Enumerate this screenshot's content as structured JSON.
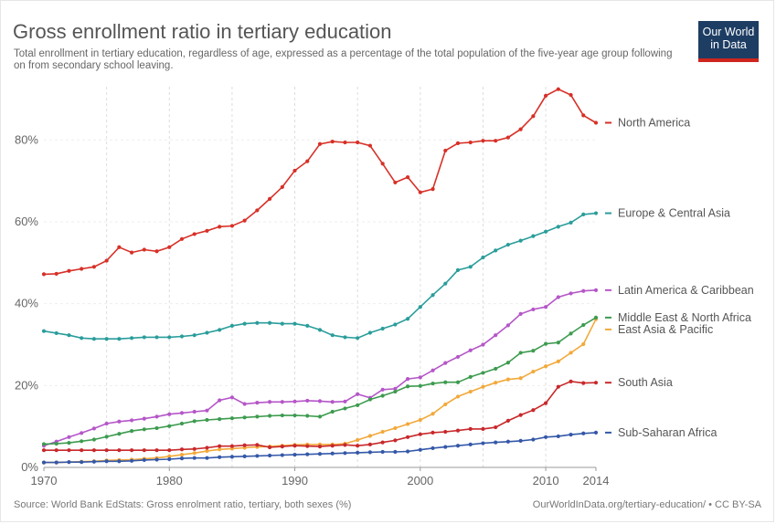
{
  "header": {
    "title": "Gross enrollment ratio in tertiary education",
    "subtitle": "Total enrollment in tertiary education, regardless of age, expressed as a percentage of the total population of the five-year age group following on from secondary school leaving."
  },
  "logo": {
    "line1": "Our World",
    "line2": "in Data",
    "bg": "#1d3d63",
    "accent": "#ce261e"
  },
  "footer": {
    "source": "Source: World Bank EdStats: Gross enrolment ratio, tertiary, both sexes (%)",
    "credit": "OurWorldInData.org/tertiary-education/ • CC BY-SA"
  },
  "chart_data": {
    "type": "line",
    "title": "Gross enrollment ratio in tertiary education",
    "xlabel": "",
    "ylabel": "",
    "xlim": [
      1970,
      2014
    ],
    "ylim": [
      0,
      93
    ],
    "grid": "vertical dashed",
    "legend": "right-edge labels",
    "x_ticks": [
      1970,
      1980,
      1990,
      2000,
      2010,
      2014
    ],
    "y_ticks": [
      0,
      20,
      40,
      60,
      80
    ],
    "y_tick_labels": [
      "0%",
      "20%",
      "40%",
      "60%",
      "80%"
    ],
    "series": [
      {
        "name": "North America",
        "color": "#d73027",
        "x": [
          1970,
          1971,
          1972,
          1973,
          1974,
          1975,
          1976,
          1977,
          1978,
          1979,
          1980,
          1981,
          1982,
          1983,
          1984,
          1985,
          1986,
          1987,
          1988,
          1989,
          1990,
          1991,
          1992,
          1993,
          1994,
          1995,
          1996,
          1997,
          1998,
          1999,
          2000,
          2001,
          2002,
          2003,
          2004,
          2005,
          2006,
          2007,
          2008,
          2009,
          2010,
          2011,
          2012,
          2013,
          2014
        ],
        "values": [
          47.2,
          47.3,
          48.0,
          48.5,
          49.0,
          50.5,
          53.8,
          52.5,
          53.2,
          52.8,
          53.8,
          55.8,
          57.0,
          57.8,
          58.8,
          59.0,
          60.3,
          62.8,
          65.6,
          68.5,
          72.5,
          74.8,
          79.0,
          79.6,
          79.4,
          79.4,
          78.6,
          74.2,
          69.6,
          70.9,
          67.2,
          68.0,
          77.4,
          79.2,
          79.4,
          79.8,
          79.8,
          80.6,
          82.6,
          85.8,
          90.8,
          92.4,
          91.0,
          86.0,
          84.2
        ]
      },
      {
        "name": "Europe & Central Asia",
        "color": "#2a9d9b",
        "x": [
          1970,
          1971,
          1972,
          1973,
          1974,
          1975,
          1976,
          1977,
          1978,
          1979,
          1980,
          1981,
          1982,
          1983,
          1984,
          1985,
          1986,
          1987,
          1988,
          1989,
          1990,
          1991,
          1992,
          1993,
          1994,
          1995,
          1996,
          1997,
          1998,
          1999,
          2000,
          2001,
          2002,
          2003,
          2004,
          2005,
          2006,
          2007,
          2008,
          2009,
          2010,
          2011,
          2012,
          2013,
          2014
        ],
        "values": [
          33.3,
          32.8,
          32.3,
          31.6,
          31.4,
          31.4,
          31.4,
          31.6,
          31.8,
          31.8,
          31.8,
          32.0,
          32.3,
          32.9,
          33.6,
          34.6,
          35.1,
          35.3,
          35.3,
          35.1,
          35.1,
          34.6,
          33.6,
          32.3,
          31.8,
          31.6,
          32.9,
          33.9,
          34.9,
          36.3,
          39.2,
          42.1,
          44.9,
          48.2,
          49.0,
          51.3,
          53.0,
          54.4,
          55.4,
          56.5,
          57.6,
          58.8,
          59.8,
          61.8,
          62.1
        ]
      },
      {
        "name": "Latin America & Caribbean",
        "color": "#b556c8",
        "x": [
          1970,
          1971,
          1972,
          1973,
          1974,
          1975,
          1976,
          1977,
          1978,
          1979,
          1980,
          1981,
          1982,
          1983,
          1984,
          1985,
          1986,
          1987,
          1988,
          1989,
          1990,
          1991,
          1992,
          1993,
          1994,
          1995,
          1996,
          1997,
          1998,
          1999,
          2000,
          2001,
          2002,
          2003,
          2004,
          2005,
          2006,
          2007,
          2008,
          2009,
          2010,
          2011,
          2012,
          2013,
          2014
        ],
        "values": [
          5.3,
          6.3,
          7.4,
          8.4,
          9.5,
          10.7,
          11.2,
          11.5,
          11.9,
          12.4,
          13.0,
          13.3,
          13.6,
          13.9,
          16.4,
          17.1,
          15.5,
          15.8,
          16.0,
          16.0,
          16.1,
          16.3,
          16.2,
          16.0,
          16.1,
          17.9,
          17.0,
          19.0,
          19.2,
          21.6,
          22.0,
          23.7,
          25.5,
          27.0,
          28.6,
          30.0,
          32.3,
          34.7,
          37.5,
          38.6,
          39.2,
          41.6,
          42.5,
          43.1,
          43.3
        ]
      },
      {
        "name": "East Asia & Pacific",
        "color": "#f2a93b",
        "x": [
          1970,
          1971,
          1972,
          1973,
          1974,
          1975,
          1976,
          1977,
          1978,
          1979,
          1980,
          1981,
          1982,
          1983,
          1984,
          1985,
          1986,
          1987,
          1988,
          1989,
          1990,
          1991,
          1992,
          1993,
          1994,
          1995,
          1996,
          1997,
          1998,
          1999,
          2000,
          2001,
          2002,
          2003,
          2004,
          2005,
          2006,
          2007,
          2008,
          2009,
          2010,
          2011,
          2012,
          2013,
          2014
        ],
        "values": [
          1.2,
          1.2,
          1.3,
          1.4,
          1.5,
          1.7,
          1.8,
          1.9,
          2.1,
          2.3,
          2.7,
          3.1,
          3.5,
          4.0,
          4.4,
          4.6,
          4.8,
          5.0,
          5.1,
          5.3,
          5.5,
          5.6,
          5.6,
          5.6,
          5.8,
          6.7,
          7.7,
          8.7,
          9.6,
          10.6,
          11.6,
          13.1,
          15.4,
          17.3,
          18.5,
          19.7,
          20.7,
          21.5,
          21.8,
          23.4,
          24.7,
          25.9,
          28.0,
          30.1,
          36.2
        ]
      },
      {
        "name": "Middle East & North Africa",
        "color": "#3d9b4f",
        "x": [
          1970,
          1971,
          1972,
          1973,
          1974,
          1975,
          1976,
          1977,
          1978,
          1979,
          1980,
          1981,
          1982,
          1983,
          1984,
          1985,
          1986,
          1987,
          1988,
          1989,
          1990,
          1991,
          1992,
          1993,
          1994,
          1995,
          1996,
          1997,
          1998,
          1999,
          2000,
          2001,
          2002,
          2003,
          2004,
          2005,
          2006,
          2007,
          2008,
          2009,
          2010,
          2011,
          2012,
          2013,
          2014
        ],
        "values": [
          5.7,
          5.8,
          6.0,
          6.4,
          6.8,
          7.5,
          8.2,
          8.9,
          9.3,
          9.6,
          10.1,
          10.7,
          11.3,
          11.6,
          11.8,
          12.0,
          12.2,
          12.4,
          12.6,
          12.7,
          12.7,
          12.6,
          12.4,
          13.6,
          14.4,
          15.2,
          16.6,
          17.5,
          18.5,
          19.8,
          19.9,
          20.5,
          20.8,
          20.8,
          22.1,
          23.1,
          24.1,
          25.6,
          28.0,
          28.5,
          30.2,
          30.5,
          32.7,
          34.8,
          36.6
        ]
      },
      {
        "name": "South Asia",
        "color": "#c8282b",
        "x": [
          1970,
          1971,
          1972,
          1973,
          1974,
          1975,
          1976,
          1977,
          1978,
          1979,
          1980,
          1981,
          1982,
          1983,
          1984,
          1985,
          1986,
          1987,
          1988,
          1989,
          1990,
          1991,
          1992,
          1993,
          1994,
          1995,
          1996,
          1997,
          1998,
          1999,
          2000,
          2001,
          2002,
          2003,
          2004,
          2005,
          2006,
          2007,
          2008,
          2009,
          2010,
          2011,
          2012,
          2013,
          2014
        ],
        "values": [
          4.2,
          4.2,
          4.2,
          4.2,
          4.2,
          4.2,
          4.2,
          4.2,
          4.2,
          4.2,
          4.2,
          4.4,
          4.5,
          4.8,
          5.2,
          5.2,
          5.4,
          5.5,
          4.9,
          5.1,
          5.3,
          5.2,
          5.1,
          5.3,
          5.5,
          5.3,
          5.6,
          6.1,
          6.6,
          7.4,
          8.1,
          8.5,
          8.7,
          9.0,
          9.4,
          9.4,
          9.8,
          11.4,
          12.8,
          14.0,
          15.7,
          19.7,
          21.0,
          20.6,
          20.7
        ]
      },
      {
        "name": "Sub-Saharan Africa",
        "color": "#3458a8",
        "x": [
          1970,
          1971,
          1972,
          1973,
          1974,
          1975,
          1976,
          1977,
          1978,
          1979,
          1980,
          1981,
          1982,
          1983,
          1984,
          1985,
          1986,
          1987,
          1988,
          1989,
          1990,
          1991,
          1992,
          1993,
          1994,
          1995,
          1996,
          1997,
          1998,
          1999,
          2000,
          2001,
          2002,
          2003,
          2004,
          2005,
          2006,
          2007,
          2008,
          2009,
          2010,
          2011,
          2012,
          2013,
          2014
        ],
        "values": [
          1.2,
          1.2,
          1.3,
          1.3,
          1.4,
          1.5,
          1.5,
          1.6,
          1.8,
          1.9,
          2.0,
          2.2,
          2.3,
          2.3,
          2.5,
          2.6,
          2.7,
          2.8,
          2.9,
          3.0,
          3.1,
          3.2,
          3.3,
          3.4,
          3.5,
          3.6,
          3.7,
          3.8,
          3.8,
          3.9,
          4.3,
          4.7,
          5.0,
          5.3,
          5.6,
          5.9,
          6.1,
          6.3,
          6.5,
          6.8,
          7.4,
          7.6,
          8.0,
          8.3,
          8.5
        ]
      }
    ],
    "end_labels": [
      {
        "series": 0,
        "text": "North America"
      },
      {
        "series": 1,
        "text": "Europe & Central Asia"
      },
      {
        "series": 2,
        "text": "Latin America & Caribbean"
      },
      {
        "series": 3,
        "text": "East Asia & Pacific"
      },
      {
        "series": 4,
        "text": "Middle East & North Africa"
      },
      {
        "series": 5,
        "text": "South Asia"
      },
      {
        "series": 6,
        "text": "Sub-Saharan Africa"
      }
    ]
  }
}
